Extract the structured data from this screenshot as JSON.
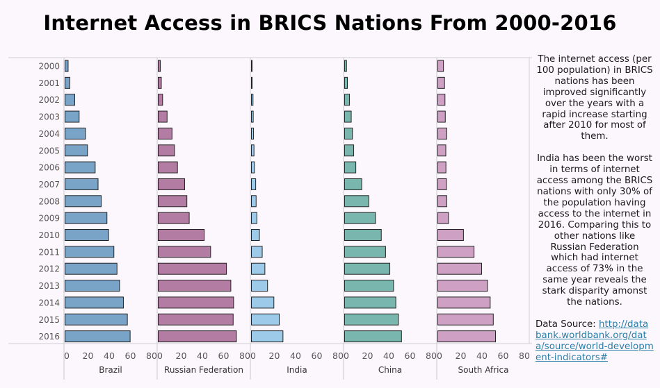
{
  "title": "Internet Access in BRICS Nations From 2000-2016",
  "sidebar": {
    "paragraph_1": "The internet access (per 100 population) in BRICS nations has been improved significantly over the years with a rapid increase starting after 2010 for most of them.",
    "paragraph_2": "India has been the worst in terms of internet access among the BRICS nations with only 30% of the population having access to the internet in 2016. Comparing this to other nations like Russian Federation which had internet access of 73% in the same year reveals the stark disparity amonst the nations.",
    "source_label": "Data Source:",
    "source_link": "http://databank.worldbank.org/data/source/world-development-indicators#"
  },
  "chart_data": {
    "type": "bar",
    "orientation": "horizontal",
    "layout": "small-multiples",
    "categories": [
      "2000",
      "2001",
      "2002",
      "2003",
      "2004",
      "2005",
      "2006",
      "2007",
      "2008",
      "2009",
      "2010",
      "2011",
      "2012",
      "2013",
      "2014",
      "2015",
      "2016"
    ],
    "xlim": [
      0,
      80
    ],
    "xticks": [
      "0",
      "20",
      "40",
      "60",
      "80"
    ],
    "grid": false,
    "series": [
      {
        "name": "Brazil",
        "color": "#7aa3c8",
        "values": [
          2.9,
          4.5,
          9.1,
          13.2,
          19.1,
          21.0,
          28.2,
          30.9,
          33.8,
          39.2,
          40.7,
          45.7,
          48.6,
          51.0,
          54.6,
          58.3,
          60.9
        ]
      },
      {
        "name": "Russian Federation",
        "color": "#b37ca3",
        "values": [
          2.0,
          2.9,
          4.1,
          8.3,
          12.9,
          15.2,
          18.0,
          24.7,
          26.8,
          29.0,
          43.0,
          49.0,
          63.8,
          67.9,
          70.5,
          70.1,
          73.1
        ]
      },
      {
        "name": "India",
        "color": "#9ecae9",
        "values": [
          0.5,
          0.7,
          1.5,
          1.7,
          2.0,
          2.4,
          2.8,
          4.0,
          4.4,
          5.1,
          7.5,
          10.1,
          12.6,
          15.1,
          21.0,
          26.0,
          29.5
        ]
      },
      {
        "name": "China",
        "color": "#79b7ae",
        "values": [
          1.8,
          2.6,
          4.6,
          6.2,
          7.3,
          8.5,
          10.5,
          16.0,
          22.6,
          28.9,
          34.3,
          38.3,
          42.3,
          45.8,
          47.9,
          50.3,
          53.2
        ]
      },
      {
        "name": "South Africa",
        "color": "#cda0c4",
        "values": [
          5.3,
          6.3,
          6.7,
          7.0,
          8.4,
          7.5,
          7.6,
          8.1,
          8.4,
          10.0,
          24.0,
          33.9,
          41.0,
          46.5,
          49.0,
          51.9,
          54.0
        ]
      }
    ]
  }
}
